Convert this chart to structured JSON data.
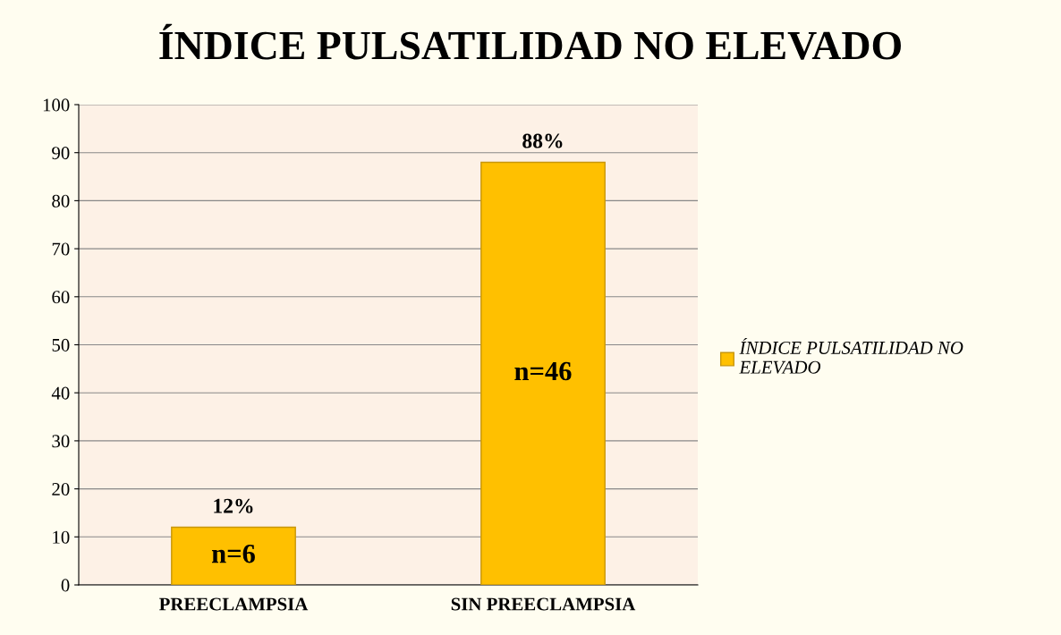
{
  "chart_data": {
    "type": "bar",
    "title": "ÍNDICE PULSATILIDAD NO ELEVADO",
    "categories": [
      "PREECLAMPSIA",
      "SIN PREECLAMPSIA"
    ],
    "series": [
      {
        "name": "ÍNDICE PULSATILIDAD NO ELEVADO",
        "color": "#ffc000",
        "values": [
          12,
          88
        ],
        "value_labels": [
          "12%",
          "88%"
        ]
      }
    ],
    "annotations": [
      "n=6",
      "n=46"
    ],
    "ylim": [
      0,
      100
    ],
    "yticks": [
      0,
      10,
      20,
      30,
      40,
      50,
      60,
      70,
      80,
      90,
      100
    ],
    "grid": "y",
    "legend": "right"
  }
}
